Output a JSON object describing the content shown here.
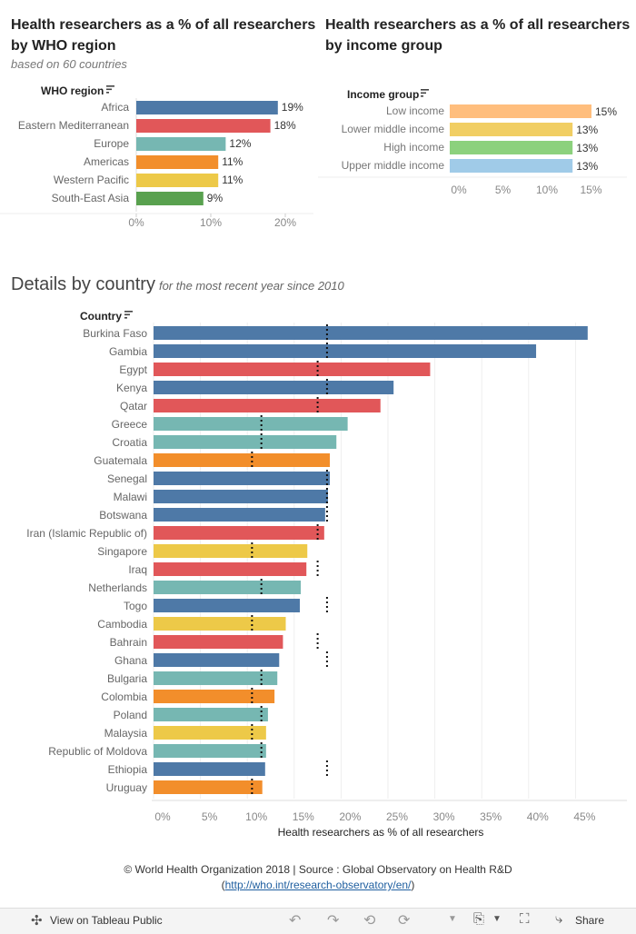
{
  "region_panel": {
    "title": "Health researchers as a % of all researchers by WHO region",
    "subtitle": "based on 60 countries",
    "header": "WHO region"
  },
  "income_panel": {
    "title": "Health researchers as a % of all researchers by income group",
    "header": "Income group"
  },
  "details": {
    "title": "Details by country",
    "subtitle": "for the most recent year since 2010",
    "header": "Country",
    "xlabel": "Health researchers  as % of all researchers"
  },
  "colors": {
    "Africa": "#4e79a7",
    "Eastern Mediterranean": "#e15759",
    "Europe": "#76b7b2",
    "Americas": "#f28e2b",
    "Western Pacific": "#edc948",
    "South-East Asia": "#59a14f",
    "Low income": "#ffbe7d",
    "Lower middle income": "#f1ce63",
    "High income": "#8cd17d",
    "Upper middle income": "#a0cbe8"
  },
  "chart_data": [
    {
      "type": "bar",
      "orientation": "horizontal",
      "categories": [
        "Africa",
        "Eastern Mediterranean",
        "Europe",
        "Americas",
        "Western Pacific",
        "South-East Asia"
      ],
      "values": [
        19,
        18,
        12,
        11,
        11,
        9
      ],
      "value_labels": [
        "19%",
        "18%",
        "12%",
        "11%",
        "11%",
        "9%"
      ],
      "xticks": [
        "0%",
        "10%",
        "20%"
      ],
      "xlim": [
        0,
        25
      ]
    },
    {
      "type": "bar",
      "orientation": "horizontal",
      "categories": [
        "Low income",
        "Lower middle income",
        "High income",
        "Upper middle income"
      ],
      "values": [
        15,
        13,
        13,
        13
      ],
      "value_labels": [
        "15%",
        "13%",
        "13%",
        "13%"
      ],
      "xticks": [
        "0%",
        "5%",
        "10%",
        "15%"
      ],
      "xlim": [
        0,
        18.5
      ]
    },
    {
      "type": "bar",
      "orientation": "horizontal",
      "categories": [
        "Burkina Faso",
        "Gambia",
        "Egypt",
        "Kenya",
        "Qatar",
        "Greece",
        "Croatia",
        "Guatemala",
        "Senegal",
        "Malawi",
        "Botswana",
        "Iran (Islamic Republic of)",
        "Singapore",
        "Iraq",
        "Netherlands",
        "Togo",
        "Cambodia",
        "Bahrain",
        "Ghana",
        "Bulgaria",
        "Colombia",
        "Poland",
        "Malaysia",
        "Republic of Moldova",
        "Ethiopia",
        "Uruguay"
      ],
      "values": [
        46.3,
        40.8,
        29.5,
        25.6,
        24.2,
        20.7,
        19.5,
        18.8,
        18.8,
        18.6,
        18.3,
        18.2,
        16.4,
        16.3,
        15.7,
        15.6,
        14.1,
        13.8,
        13.4,
        13.2,
        12.9,
        12.2,
        12.0,
        12.0,
        11.9,
        11.6
      ],
      "who_region": [
        "Africa",
        "Africa",
        "Eastern Mediterranean",
        "Africa",
        "Eastern Mediterranean",
        "Europe",
        "Europe",
        "Americas",
        "Africa",
        "Africa",
        "Africa",
        "Eastern Mediterranean",
        "Western Pacific",
        "Eastern Mediterranean",
        "Europe",
        "Africa",
        "Western Pacific",
        "Eastern Mediterranean",
        "Africa",
        "Europe",
        "Americas",
        "Europe",
        "Western Pacific",
        "Europe",
        "Africa",
        "Americas"
      ],
      "reference_line": "regional average",
      "xticks": [
        "0%",
        "5%",
        "10%",
        "15%",
        "20%",
        "25%",
        "30%",
        "35%",
        "40%",
        "45%"
      ],
      "xlim": [
        0,
        49
      ]
    }
  ],
  "footer": {
    "credit": "© World Health Organization 2018 | Source : Global Observatory on Health R&D",
    "link": "http://who.int/research-observatory/en/"
  },
  "toolbar": {
    "view_label": "View on Tableau Public",
    "share_label": "Share"
  }
}
